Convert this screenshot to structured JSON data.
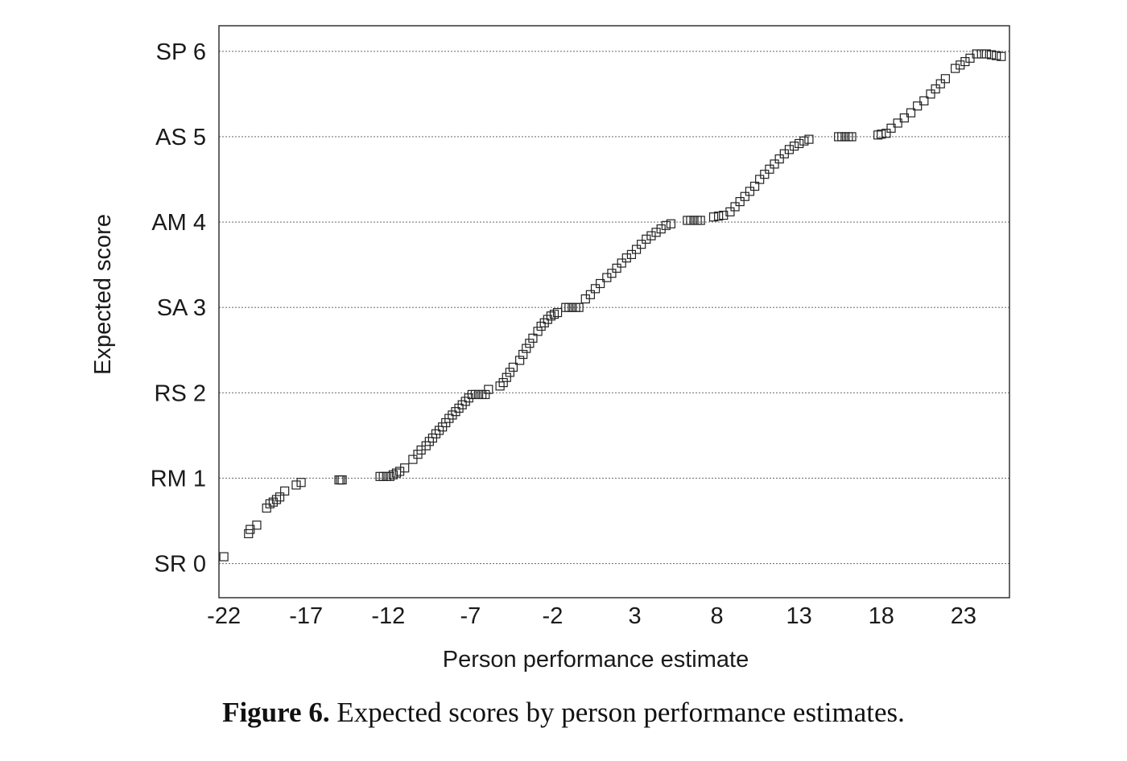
{
  "chart_data": {
    "type": "scatter",
    "title": "",
    "xlabel": "Person performance estimate",
    "ylabel": "Expected score",
    "xlim": [
      -22.3,
      25.8
    ],
    "ylim": [
      -0.4,
      6.3
    ],
    "x_ticks": [
      -22,
      -17,
      -12,
      -7,
      -2,
      3,
      8,
      13,
      18,
      23
    ],
    "x_tick_labels": [
      "-22",
      "-17",
      "-12",
      "-7",
      "-2",
      "3",
      "8",
      "13",
      "18",
      "23"
    ],
    "y_ticks": [
      0,
      1,
      2,
      3,
      4,
      5,
      6
    ],
    "y_tick_labels": [
      "SR 0",
      "RM 1",
      "RS 2",
      "SA 3",
      "AM 4",
      "AS 5",
      "SP 6"
    ],
    "grid": "horizontal dotted at y ticks",
    "legend": "none",
    "marker": "hollow square",
    "series": [
      {
        "points": [
          [
            -22.0,
            0.08
          ],
          [
            -20.5,
            0.35
          ],
          [
            -20.4,
            0.4
          ],
          [
            -20.0,
            0.45
          ],
          [
            -19.4,
            0.65
          ],
          [
            -19.2,
            0.7
          ],
          [
            -19.0,
            0.72
          ],
          [
            -18.8,
            0.75
          ],
          [
            -18.6,
            0.78
          ],
          [
            -18.3,
            0.85
          ],
          [
            -17.6,
            0.92
          ],
          [
            -17.3,
            0.95
          ],
          [
            -15.0,
            0.98
          ],
          [
            -14.9,
            0.98
          ],
          [
            -14.8,
            0.98
          ],
          [
            -12.5,
            1.02
          ],
          [
            -12.3,
            1.02
          ],
          [
            -12.1,
            1.02
          ],
          [
            -11.9,
            1.02
          ],
          [
            -11.7,
            1.04
          ],
          [
            -11.5,
            1.06
          ],
          [
            -11.3,
            1.08
          ],
          [
            -11.0,
            1.12
          ],
          [
            -10.5,
            1.22
          ],
          [
            -10.2,
            1.28
          ],
          [
            -10.0,
            1.33
          ],
          [
            -9.7,
            1.38
          ],
          [
            -9.5,
            1.43
          ],
          [
            -9.3,
            1.47
          ],
          [
            -9.1,
            1.52
          ],
          [
            -8.9,
            1.56
          ],
          [
            -8.7,
            1.6
          ],
          [
            -8.5,
            1.65
          ],
          [
            -8.3,
            1.7
          ],
          [
            -8.1,
            1.74
          ],
          [
            -7.9,
            1.78
          ],
          [
            -7.7,
            1.82
          ],
          [
            -7.5,
            1.86
          ],
          [
            -7.3,
            1.9
          ],
          [
            -7.1,
            1.94
          ],
          [
            -6.9,
            1.98
          ],
          [
            -6.7,
            1.98
          ],
          [
            -6.5,
            1.98
          ],
          [
            -6.3,
            1.98
          ],
          [
            -6.1,
            1.98
          ],
          [
            -5.9,
            2.04
          ],
          [
            -5.2,
            2.08
          ],
          [
            -5.0,
            2.12
          ],
          [
            -4.8,
            2.18
          ],
          [
            -4.6,
            2.24
          ],
          [
            -4.4,
            2.3
          ],
          [
            -4.0,
            2.38
          ],
          [
            -3.8,
            2.45
          ],
          [
            -3.6,
            2.52
          ],
          [
            -3.4,
            2.58
          ],
          [
            -3.2,
            2.64
          ],
          [
            -2.9,
            2.72
          ],
          [
            -2.7,
            2.78
          ],
          [
            -2.5,
            2.82
          ],
          [
            -2.3,
            2.86
          ],
          [
            -2.1,
            2.9
          ],
          [
            -1.9,
            2.92
          ],
          [
            -1.7,
            2.94
          ],
          [
            -1.2,
            3.0
          ],
          [
            -1.0,
            3.0
          ],
          [
            -0.8,
            3.0
          ],
          [
            -0.6,
            3.0
          ],
          [
            -0.4,
            3.0
          ],
          [
            0.0,
            3.1
          ],
          [
            0.3,
            3.15
          ],
          [
            0.6,
            3.22
          ],
          [
            0.9,
            3.28
          ],
          [
            1.3,
            3.35
          ],
          [
            1.6,
            3.4
          ],
          [
            1.9,
            3.46
          ],
          [
            2.2,
            3.52
          ],
          [
            2.5,
            3.58
          ],
          [
            2.8,
            3.62
          ],
          [
            3.1,
            3.68
          ],
          [
            3.4,
            3.74
          ],
          [
            3.7,
            3.8
          ],
          [
            4.0,
            3.84
          ],
          [
            4.3,
            3.88
          ],
          [
            4.6,
            3.92
          ],
          [
            4.9,
            3.96
          ],
          [
            5.2,
            3.98
          ],
          [
            6.2,
            4.02
          ],
          [
            6.4,
            4.02
          ],
          [
            6.6,
            4.02
          ],
          [
            6.8,
            4.02
          ],
          [
            7.0,
            4.02
          ],
          [
            7.8,
            4.06
          ],
          [
            8.1,
            4.07
          ],
          [
            8.4,
            4.08
          ],
          [
            8.8,
            4.12
          ],
          [
            9.1,
            4.18
          ],
          [
            9.4,
            4.24
          ],
          [
            9.7,
            4.3
          ],
          [
            10.0,
            4.36
          ],
          [
            10.3,
            4.42
          ],
          [
            10.6,
            4.5
          ],
          [
            10.9,
            4.56
          ],
          [
            11.2,
            4.62
          ],
          [
            11.5,
            4.68
          ],
          [
            11.8,
            4.74
          ],
          [
            12.1,
            4.8
          ],
          [
            12.4,
            4.85
          ],
          [
            12.7,
            4.89
          ],
          [
            13.0,
            4.92
          ],
          [
            13.3,
            4.95
          ],
          [
            13.6,
            4.97
          ],
          [
            15.4,
            5.0
          ],
          [
            15.6,
            5.0
          ],
          [
            15.8,
            5.0
          ],
          [
            16.0,
            5.0
          ],
          [
            16.2,
            5.0
          ],
          [
            17.8,
            5.02
          ],
          [
            18.0,
            5.03
          ],
          [
            18.3,
            5.04
          ],
          [
            18.6,
            5.1
          ],
          [
            19.0,
            5.16
          ],
          [
            19.4,
            5.22
          ],
          [
            19.8,
            5.28
          ],
          [
            20.2,
            5.36
          ],
          [
            20.6,
            5.42
          ],
          [
            21.0,
            5.5
          ],
          [
            21.3,
            5.56
          ],
          [
            21.6,
            5.62
          ],
          [
            21.9,
            5.68
          ],
          [
            22.5,
            5.8
          ],
          [
            22.8,
            5.84
          ],
          [
            23.1,
            5.88
          ],
          [
            23.4,
            5.92
          ],
          [
            23.8,
            5.97
          ],
          [
            24.1,
            5.97
          ],
          [
            24.4,
            5.97
          ],
          [
            24.7,
            5.96
          ],
          [
            25.0,
            5.95
          ],
          [
            25.3,
            5.94
          ]
        ]
      }
    ]
  },
  "caption": {
    "label": "Figure 6.",
    "text": " Expected scores by person performance estimates."
  }
}
